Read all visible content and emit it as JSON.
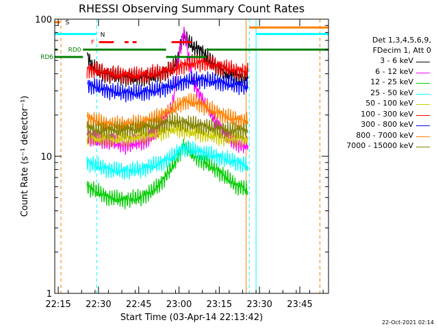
{
  "chart_data": {
    "type": "line",
    "title": "RHESSI Observing Summary Count Rates",
    "xlabel": "Start Time (03-Apr-14 22:13:42)",
    "ylabel": "Count Rate (s⁻¹ detector⁻¹)",
    "yscale": "log",
    "ylim": [
      1,
      100
    ],
    "xlim_min": [
      0,
      102
    ],
    "x_tick_labels": [
      "22:15",
      "22:30",
      "22:45",
      "23:00",
      "23:15",
      "23:30",
      "23:45"
    ],
    "x_tick_values_min": [
      1.3,
      16.3,
      31.3,
      46.3,
      61.3,
      76.3,
      91.3
    ],
    "y_tick_labels": [
      "1",
      "10",
      "100"
    ],
    "y_tick_values": [
      1,
      10,
      100
    ],
    "date_stamp": "22-Oct-2021 02:14",
    "legend_header": [
      "Det 1,3,4,5,6,9,",
      "FDecim 1, Att 0"
    ],
    "series": [
      {
        "name": "3 - 6 keV",
        "color": "#000000",
        "x": [
          12,
          14,
          18,
          24,
          30,
          36,
          40,
          44,
          46,
          47,
          48,
          49,
          50,
          51,
          52,
          54,
          56,
          58,
          60,
          62,
          64,
          66,
          68,
          70,
          72
        ],
        "values": [
          55,
          45,
          40,
          38,
          37,
          38,
          40,
          44,
          52,
          68,
          75,
          72,
          68,
          64,
          62,
          60,
          55,
          50,
          45,
          43,
          40,
          40,
          38,
          38,
          38
        ]
      },
      {
        "name": "6 - 12 keV",
        "color": "#ff00ff",
        "x": [
          12,
          16,
          20,
          26,
          30,
          34,
          38,
          40,
          42,
          44,
          45,
          46,
          47,
          48,
          49,
          50,
          51,
          52,
          54,
          56,
          58,
          60,
          62,
          64,
          66,
          68,
          70,
          72
        ],
        "values": [
          14,
          13,
          13,
          12,
          12.5,
          13,
          15,
          18,
          20,
          24,
          35,
          50,
          65,
          80,
          70,
          50,
          40,
          33,
          28,
          24,
          21,
          18,
          16,
          14,
          13,
          12.5,
          12,
          12
        ]
      },
      {
        "name": "12 - 25 keV",
        "color": "#00cc00",
        "x": [
          12,
          16,
          20,
          26,
          32,
          36,
          40,
          42,
          44,
          46,
          48,
          50,
          52,
          54,
          56,
          58,
          60,
          62,
          64,
          66,
          68,
          70,
          72
        ],
        "values": [
          6,
          5.5,
          5,
          4.8,
          5,
          5.5,
          6.5,
          7.5,
          8.5,
          10,
          12,
          11,
          10,
          9.5,
          9,
          8.5,
          8,
          7.5,
          7,
          6.5,
          6,
          6,
          5.5
        ]
      },
      {
        "name": "25 - 50 keV",
        "color": "#00ffff",
        "x": [
          12,
          16,
          20,
          26,
          32,
          36,
          40,
          44,
          48,
          52,
          56,
          60,
          64,
          68,
          72
        ],
        "values": [
          9,
          8.5,
          8,
          7.8,
          8,
          8.5,
          9,
          10,
          11.5,
          11,
          10.5,
          10,
          9.5,
          9,
          8.5
        ]
      },
      {
        "name": "50 - 100 keV",
        "color": "#cccc00",
        "x": [
          12,
          16,
          20,
          26,
          32,
          36,
          40,
          44,
          48,
          52,
          56,
          60,
          64,
          68,
          72
        ],
        "values": [
          14,
          13.5,
          13.5,
          13.5,
          14,
          14.5,
          15,
          16,
          15.5,
          15,
          14.5,
          14,
          13.5,
          13.5,
          13.5
        ]
      },
      {
        "name": "100 - 300 keV",
        "color": "#ff0000",
        "x": [
          12,
          16,
          20,
          26,
          32,
          36,
          40,
          44,
          48,
          52,
          56,
          60,
          64,
          68,
          72
        ],
        "values": [
          43,
          42,
          40,
          39,
          39,
          40,
          41,
          43,
          46,
          48,
          48,
          46,
          44,
          42,
          41
        ]
      },
      {
        "name": "300 - 800 keV",
        "color": "#0000ff",
        "x": [
          12,
          16,
          20,
          26,
          32,
          36,
          40,
          44,
          48,
          52,
          56,
          60,
          64,
          68,
          72
        ],
        "values": [
          33,
          32,
          30,
          29,
          29,
          30,
          31,
          33,
          35,
          36,
          36,
          35,
          34,
          33,
          32
        ]
      },
      {
        "name": "800 - 7000 keV",
        "color": "#ff8000",
        "x": [
          12,
          16,
          20,
          26,
          32,
          36,
          40,
          44,
          48,
          52,
          56,
          60,
          64,
          68,
          72
        ],
        "values": [
          19,
          18,
          17,
          17,
          17.5,
          18.5,
          20,
          22,
          25,
          25,
          23,
          21,
          19.5,
          18.5,
          18
        ]
      },
      {
        "name": "7000 - 15000 keV",
        "color": "#808000",
        "x": [
          12,
          16,
          20,
          26,
          32,
          36,
          40,
          44,
          48,
          52,
          56,
          60,
          64,
          68,
          72
        ],
        "values": [
          16,
          15.5,
          15.5,
          15.5,
          16,
          16.5,
          17,
          18,
          17.5,
          17,
          16.5,
          16,
          15.5,
          15.5,
          15.5
        ]
      }
    ],
    "flag_bars": [
      {
        "label": "S",
        "color": "#ff8000",
        "level": 95,
        "segments": [
          [
            0,
            2
          ]
        ]
      },
      {
        "label": "N",
        "color": "#00ffff",
        "level": 78,
        "segments": [
          [
            0,
            15.5
          ],
          [
            75,
            102
          ]
        ]
      },
      {
        "label": "F",
        "color": "#ff0000",
        "level": 68,
        "segments": [
          [
            16.5,
            22
          ],
          [
            26,
            27.5
          ],
          [
            29,
            30.5
          ],
          [
            43.5,
            51
          ]
        ]
      },
      {
        "label": "RD0",
        "color": "#008000",
        "level": 60,
        "segments": [
          [
            0,
            1
          ],
          [
            10.5,
            41.5
          ],
          [
            56.5,
            102
          ]
        ]
      },
      {
        "label": "RD6",
        "color": "#008000",
        "level": 53,
        "segments": [
          [
            0,
            10.5
          ],
          [
            41.5,
            56.5
          ]
        ]
      },
      {
        "label": "",
        "color": "#ff8000",
        "level": 87,
        "segments": [
          [
            72.5,
            102
          ]
        ]
      }
    ],
    "vertical_markers": [
      {
        "x": 0.0,
        "color": "#00ffff",
        "style": "solid"
      },
      {
        "x": 2.3,
        "color": "#ff8000",
        "style": "dashed"
      },
      {
        "x": 15.6,
        "color": "#00ffff",
        "style": "dashed"
      },
      {
        "x": 71.3,
        "color": "#ff8000",
        "style": "solid"
      },
      {
        "x": 72.5,
        "color": "#00ffff",
        "style": "dashed"
      },
      {
        "x": 75.0,
        "color": "#00ffff",
        "style": "solid"
      },
      {
        "x": 98.8,
        "color": "#ff8000",
        "style": "dashed"
      }
    ]
  }
}
